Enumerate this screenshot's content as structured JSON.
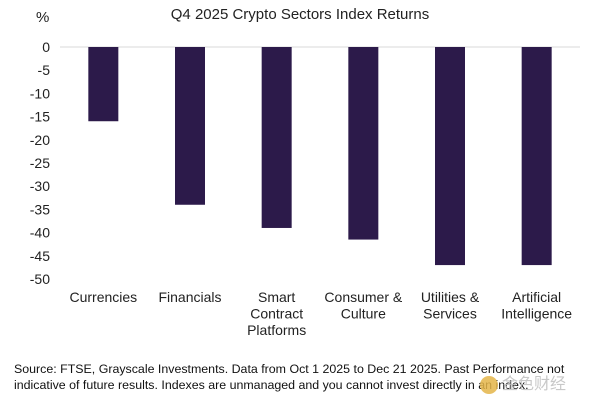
{
  "chart_data": {
    "type": "bar",
    "title": "Q4 2025 Crypto Sectors Index Returns",
    "ylabel": "%",
    "xlabel": "",
    "ylim": [
      -50,
      0
    ],
    "yticks": [
      0,
      -5,
      -10,
      -15,
      -20,
      -25,
      -30,
      -35,
      -40,
      -45,
      -50
    ],
    "grid": false,
    "bar_color": "#2c1a4a",
    "categories": [
      [
        "Currencies"
      ],
      [
        "Financials"
      ],
      [
        "Smart",
        "Contract",
        "Platforms"
      ],
      [
        "Consumer &",
        "Culture"
      ],
      [
        "Utilities &",
        "Services"
      ],
      [
        "Artificial",
        "Intelligence"
      ]
    ],
    "values": [
      -16,
      -34,
      -39,
      -41.5,
      -47,
      -47
    ]
  },
  "source_note": "Source: FTSE, Grayscale Investments. Data from Oct 1 2025 to Dec 21 2025. Past Performance not indicative of future results. Indexes are unmanaged and you cannot invest directly in an index.",
  "watermark": "金色财经"
}
